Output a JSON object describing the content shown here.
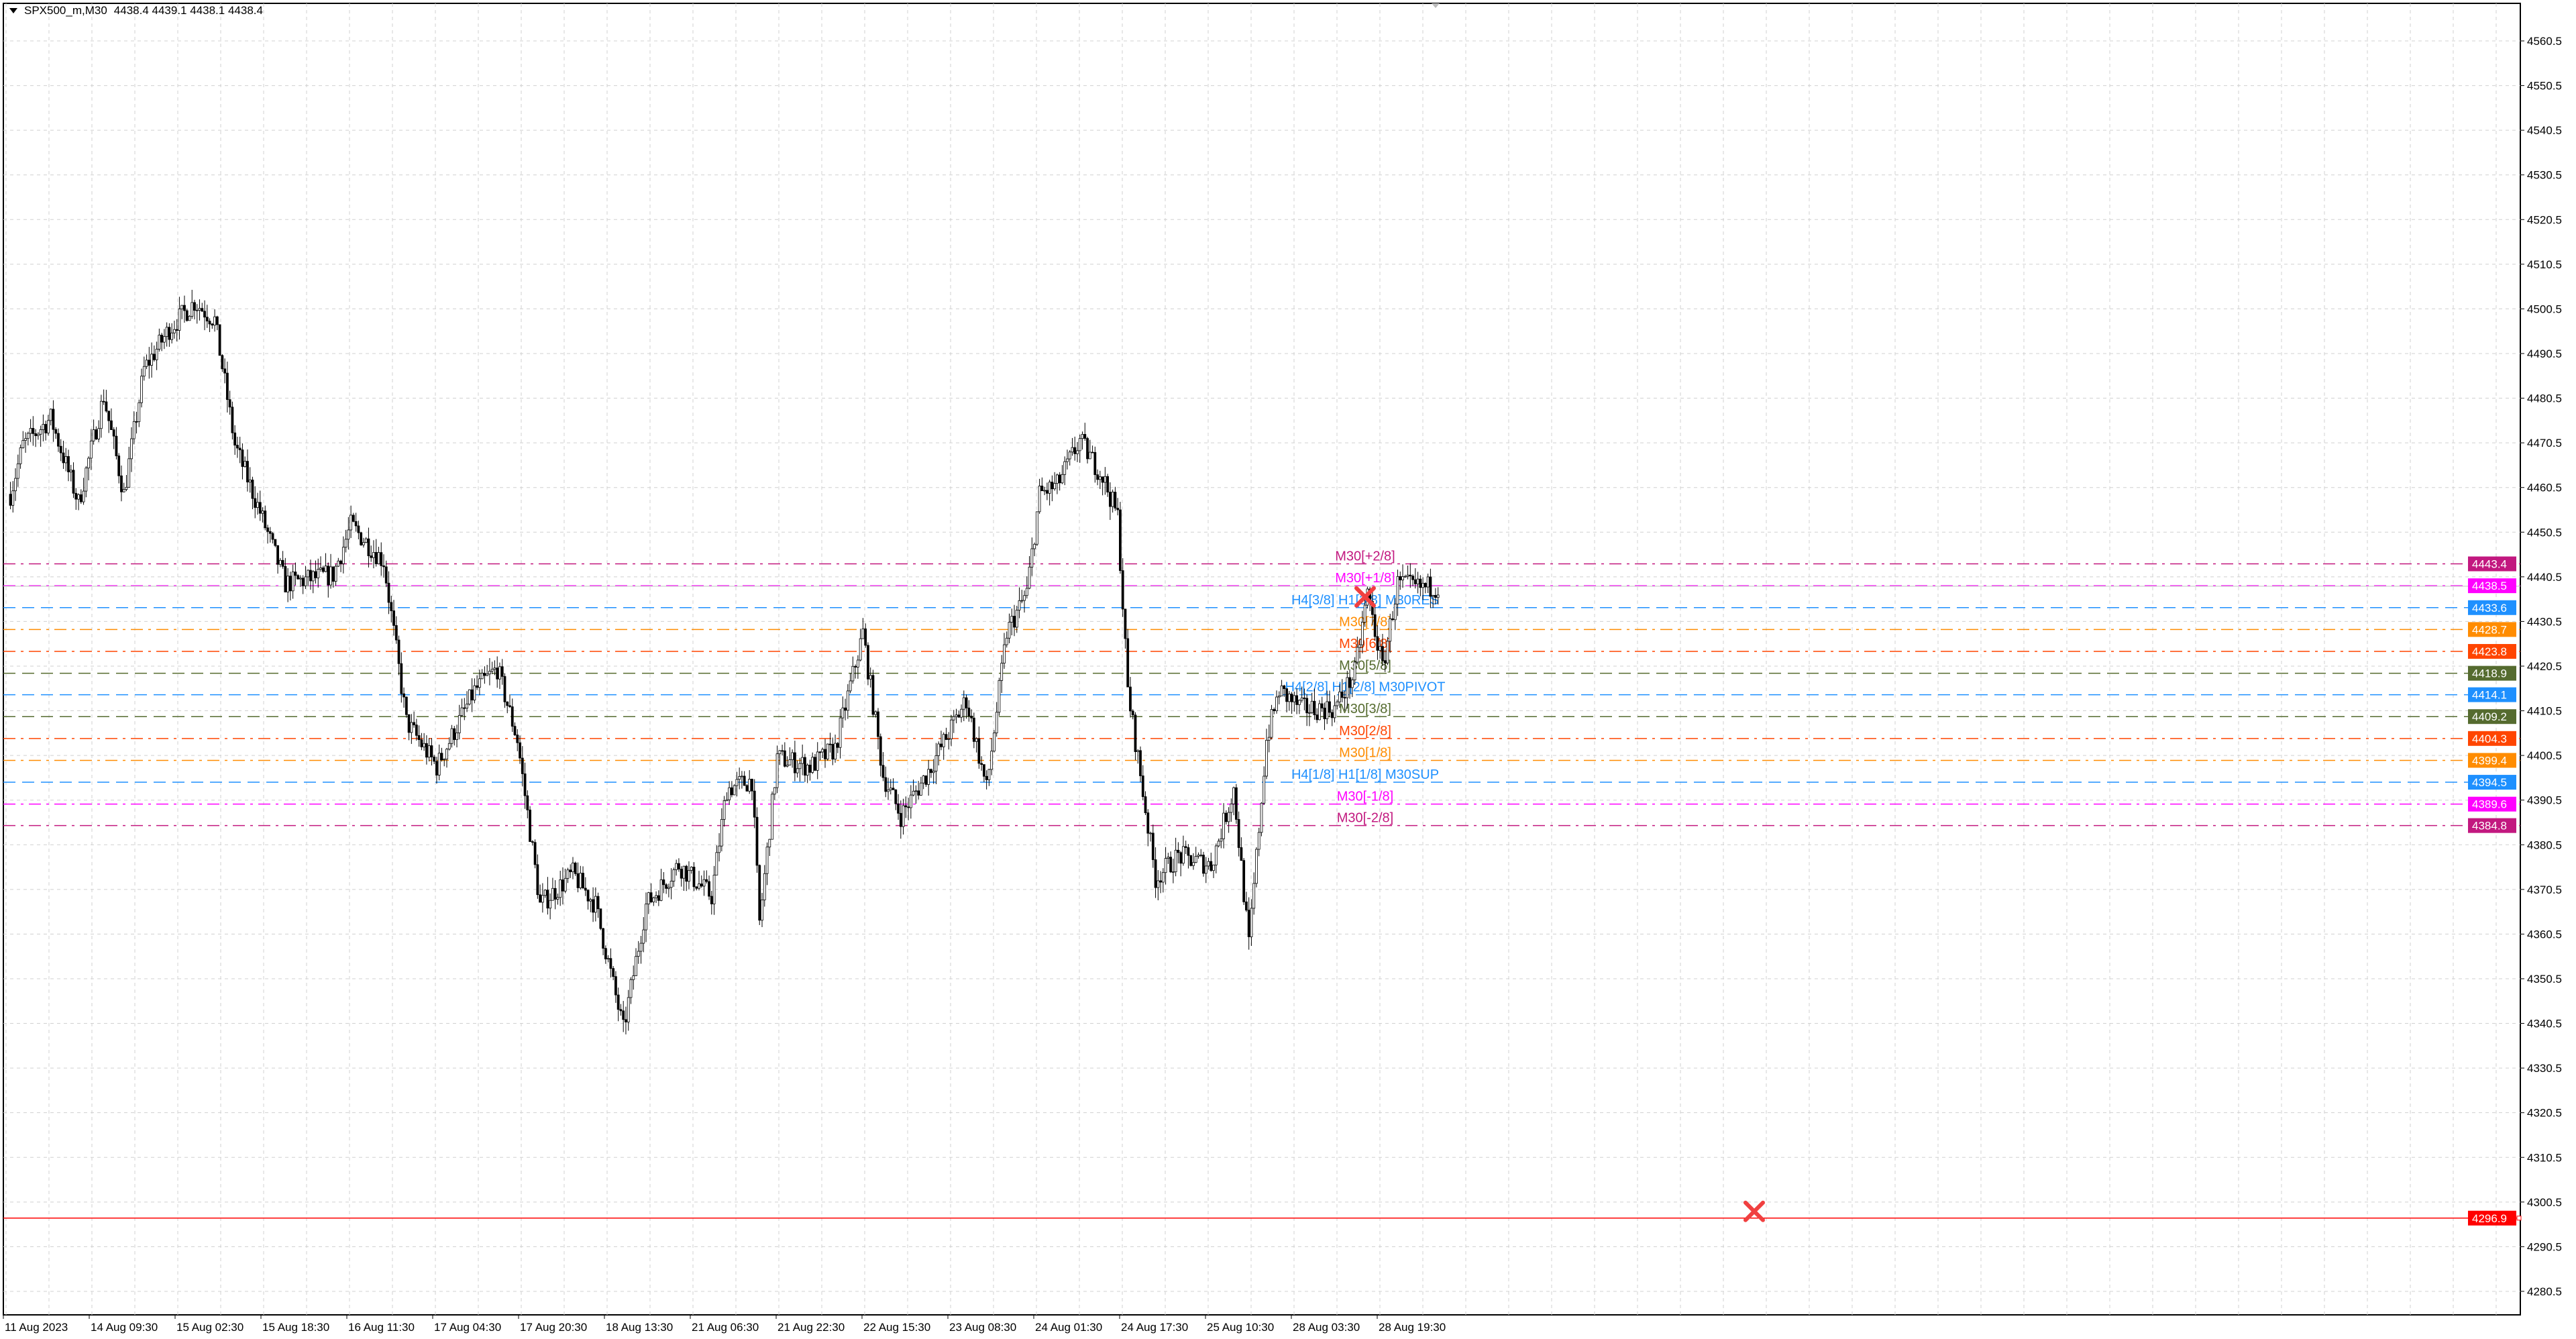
{
  "header": {
    "symbol": "SPX500_m,M30",
    "ohlc": "4438.4 4439.1 4438.1 4438.4"
  },
  "chart_data": {
    "type": "candlestick",
    "symbol": "SPX500_m",
    "timeframe": "M30",
    "grid": true,
    "y_ticks": [
      4560.5,
      4550.5,
      4540.5,
      4530.5,
      4520.5,
      4510.5,
      4500.5,
      4490.5,
      4480.5,
      4470.5,
      4460.5,
      4450.5,
      4440.5,
      4430.5,
      4420.5,
      4410.5,
      4400.5,
      4390.5,
      4380.5,
      4370.5,
      4360.5,
      4350.5,
      4340.5,
      4330.5,
      4320.5,
      4310.5,
      4300.5,
      4290.5,
      4280.5
    ],
    "x_ticks": [
      "11 Aug 2023",
      "14 Aug 09:30",
      "15 Aug 02:30",
      "15 Aug 18:30",
      "16 Aug 11:30",
      "17 Aug 04:30",
      "17 Aug 20:30",
      "18 Aug 13:30",
      "21 Aug 06:30",
      "21 Aug 22:30",
      "22 Aug 15:30",
      "23 Aug 08:30",
      "24 Aug 01:30",
      "24 Aug 17:30",
      "25 Aug 10:30",
      "28 Aug 03:30",
      "28 Aug 19:30"
    ],
    "price_path": [
      [
        2,
        4459
      ],
      [
        7,
        4470
      ],
      [
        18,
        4476
      ],
      [
        29,
        4457
      ],
      [
        39,
        4481
      ],
      [
        47,
        4459
      ],
      [
        55,
        4487
      ],
      [
        65,
        4496
      ],
      [
        75,
        4502
      ],
      [
        83,
        4498
      ],
      [
        91,
        4470
      ],
      [
        101,
        4455
      ],
      [
        111,
        4439
      ],
      [
        130,
        4441
      ],
      [
        137,
        4452
      ],
      [
        150,
        4444
      ],
      [
        159,
        4408
      ],
      [
        171,
        4398
      ],
      [
        186,
        4415
      ],
      [
        195,
        4420
      ],
      [
        203,
        4404
      ],
      [
        212,
        4367
      ],
      [
        225,
        4374
      ],
      [
        234,
        4367
      ],
      [
        245,
        4339
      ],
      [
        254,
        4367
      ],
      [
        267,
        4376
      ],
      [
        280,
        4369
      ],
      [
        286,
        4393
      ],
      [
        296,
        4395
      ],
      [
        299,
        4363
      ],
      [
        306,
        4400
      ],
      [
        319,
        4398
      ],
      [
        329,
        4402
      ],
      [
        340,
        4428
      ],
      [
        348,
        4396
      ],
      [
        355,
        4387
      ],
      [
        365,
        4396
      ],
      [
        381,
        4413
      ],
      [
        389,
        4393
      ],
      [
        397,
        4428
      ],
      [
        405,
        4437
      ],
      [
        410,
        4459
      ],
      [
        417,
        4461
      ],
      [
        426,
        4471
      ],
      [
        435,
        4463
      ],
      [
        441,
        4454
      ],
      [
        445,
        4415
      ],
      [
        449,
        4400
      ],
      [
        456,
        4373
      ],
      [
        465,
        4378
      ],
      [
        478,
        4376
      ],
      [
        487,
        4393
      ],
      [
        493,
        4358
      ],
      [
        500,
        4404
      ],
      [
        505,
        4415
      ],
      [
        514,
        4411
      ],
      [
        527,
        4411
      ],
      [
        535,
        4419
      ],
      [
        540,
        4437
      ],
      [
        546,
        4420
      ],
      [
        552,
        4439
      ],
      [
        560,
        4438
      ],
      [
        568,
        4438.4
      ]
    ],
    "levels": [
      {
        "price": 4443.4,
        "label": "M30[+2/8]",
        "tag": "4443.4",
        "color": "#c2187f",
        "dash": "dashdot"
      },
      {
        "price": 4438.5,
        "label": "M30[+1/8]",
        "tag": "4438.5",
        "color": "#ff00ff",
        "dash": "dashdot"
      },
      {
        "price": 4433.6,
        "label": "H4[3/8] H1[3/8] M30RES",
        "tag": "4433.6",
        "color": "#1e90ff",
        "dash": "dash"
      },
      {
        "price": 4428.7,
        "label": "M30[7/8]",
        "tag": "4428.7",
        "color": "#ff8c00",
        "dash": "dashdot"
      },
      {
        "price": 4423.8,
        "label": "M30[6/8]",
        "tag": "4423.8",
        "color": "#ff4500",
        "dash": "dashdot"
      },
      {
        "price": 4418.9,
        "label": "M30[5/8]",
        "tag": "4418.9",
        "color": "#556b2f",
        "dash": "dash"
      },
      {
        "price": 4414.1,
        "label": "H4[2/8] H1[2/8] M30PIVOT",
        "tag": "4414.1",
        "color": "#1e90ff",
        "dash": "dash"
      },
      {
        "price": 4409.2,
        "label": "M30[3/8]",
        "tag": "4409.2",
        "color": "#556b2f",
        "dash": "dash"
      },
      {
        "price": 4404.3,
        "label": "M30[2/8]",
        "tag": "4404.3",
        "color": "#ff4500",
        "dash": "dashdot"
      },
      {
        "price": 4399.4,
        "label": "M30[1/8]",
        "tag": "4399.4",
        "color": "#ff8c00",
        "dash": "dashdot"
      },
      {
        "price": 4394.5,
        "label": "H4[1/8] H1[1/8] M30SUP",
        "tag": "4394.5",
        "color": "#1e90ff",
        "dash": "dash"
      },
      {
        "price": 4389.6,
        "label": "M30[-1/8]",
        "tag": "4389.6",
        "color": "#ff00ff",
        "dash": "dashdot"
      },
      {
        "price": 4384.8,
        "label": "M30[-2/8]",
        "tag": "4384.8",
        "color": "#c2187f",
        "dash": "dashdot"
      }
    ],
    "alert_line": {
      "price": 4296.9,
      "tag": "4296.9",
      "color": "#ff0000"
    },
    "bid_line": {
      "price": 4438.4,
      "color": "#c0c0c0"
    }
  }
}
